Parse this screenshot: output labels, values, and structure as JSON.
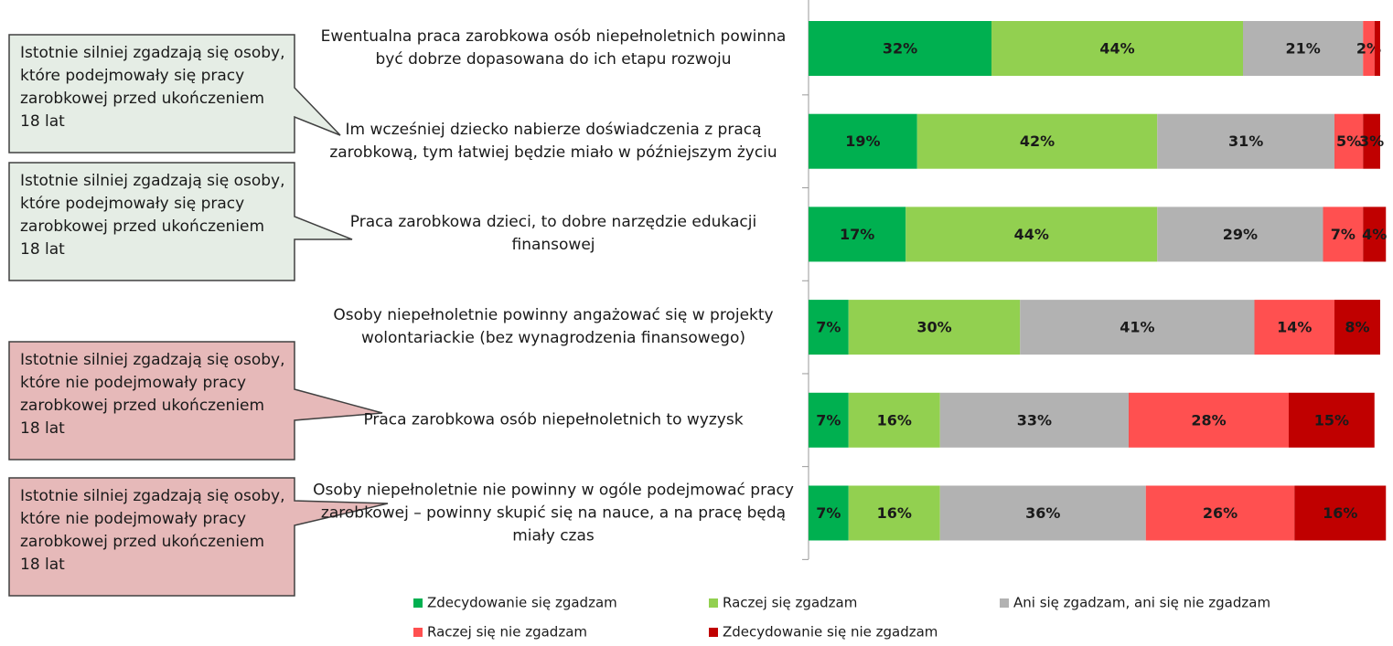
{
  "chart_data": {
    "type": "stacked-bar-horizontal",
    "categories": [
      "Ewentualna praca zarobkowa osób niepełnoletnich powinna być dobrze dopasowana do ich etapu rozwoju",
      "Im wcześniej dziecko nabierze doświadczenia z pracą zarobkową, tym łatwiej będzie miało w późniejszym życiu",
      "Praca zarobkowa dzieci, to dobre narzędzie edukacji finansowej",
      "Osoby niepełnoletnie powinny angażować się w projekty wolontariackie (bez wynagrodzenia finansowego)",
      "Praca zarobkowa osób niepełnoletnich to wyzysk",
      "Osoby niepełnoletnie nie powinny w ogóle podejmować pracy zarobkowej – powinny skupić się na nauce, a na pracę będą miały czas"
    ],
    "xlim": [
      0,
      100
    ],
    "series": [
      {
        "name": "Zdecydowanie się zgadzam",
        "color": "#00b050",
        "values": [
          32,
          19,
          17,
          7,
          7,
          7
        ],
        "value_labels": [
          "32%",
          "19%",
          "17%",
          "7%",
          "7%",
          "7%"
        ]
      },
      {
        "name": "Raczej się zgadzam",
        "color": "#92d050",
        "values": [
          44,
          42,
          44,
          30,
          16,
          16
        ],
        "value_labels": [
          "44%",
          "42%",
          "44%",
          "30%",
          "16%",
          "16%"
        ]
      },
      {
        "name": "Ani się zgadzam, ani się nie zgadzam",
        "color": "#b2b2b2",
        "values": [
          21,
          31,
          29,
          41,
          33,
          36
        ],
        "value_labels": [
          "21%",
          "31%",
          "29%",
          "41%",
          "33%",
          "36%"
        ]
      },
      {
        "name": "Raczej się nie zgadzam",
        "color": "#ff5050",
        "values": [
          2,
          5,
          7,
          14,
          28,
          26
        ],
        "value_labels": [
          "2%",
          "5%",
          "7%",
          "14%",
          "28%",
          "26%"
        ]
      },
      {
        "name": "Zdecydowanie się nie zgadzam",
        "color": "#c00000",
        "values": [
          1,
          3,
          4,
          8,
          15,
          16
        ],
        "value_labels": [
          null,
          "3%",
          "4%",
          "8%",
          "15%",
          "16%"
        ]
      }
    ],
    "callouts": [
      "Istotnie silniej zgadzają się osoby, które podejmowały się pracy zarobkowej przed ukończeniem 18 lat",
      "Istotnie silniej zgadzają się osoby, które podejmowały się pracy zarobkowej przed ukończeniem 18 lat",
      "Istotnie silniej zgadzają się osoby, które nie podejmowały pracy zarobkowej przed ukończeniem 18 lat",
      "Istotnie silniej zgadzają się osoby, które nie podejmowały pracy zarobkowej przed ukończeniem 18 lat"
    ]
  }
}
